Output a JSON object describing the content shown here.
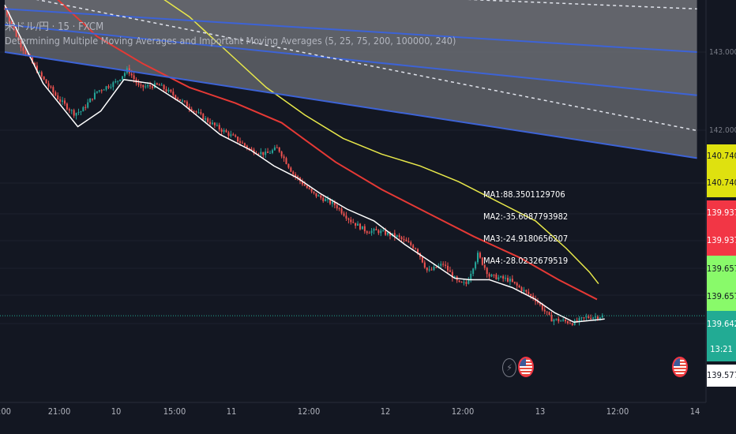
{
  "legend": {
    "symbol_line": "米ドル/円 · 15 · FXCM",
    "indicator_line": "Determining Multiple Moving Averages and Important Moving Averages (5, 25, 75, 200, 100000, 240)"
  },
  "ma_readouts": [
    "MA1:88.3501129706",
    "MA2:-35.6087793982",
    "MA3:-24.9180656207",
    "MA4:-28.0232679519"
  ],
  "price_boxes": [
    {
      "label": "140.740",
      "bg": "#dfe10f",
      "fg": "#131722"
    },
    {
      "label": "140.740",
      "bg": "#dfe10f",
      "fg": "#131722"
    },
    {
      "label": "139.937",
      "bg": "#f23645",
      "fg": "#ffffff"
    },
    {
      "label": "139.937",
      "bg": "#f23645",
      "fg": "#ffffff"
    },
    {
      "label": "139.657",
      "bg": "#89fa6a",
      "fg": "#131722"
    },
    {
      "label": "139.657",
      "bg": "#89fa6a",
      "fg": "#131722"
    },
    {
      "label": "139.642",
      "bg": "#22ab94",
      "fg": "#ffffff"
    },
    {
      "label": "13:21",
      "bg": "#22ab94",
      "fg": "#ffffff"
    },
    {
      "label": "139.577",
      "bg": "#ffffff",
      "fg": "#131722"
    }
  ],
  "axis_price_labels": [
    "143.000",
    "142.000"
  ],
  "time_labels": [
    ":00",
    "21:00",
    "10",
    "15:00",
    "11",
    "12:00",
    "12",
    "12:00",
    "13",
    "12:00",
    "14"
  ],
  "event_icons": [
    "lightning-icon",
    "us-flag-icon",
    "us-flag-icon"
  ],
  "colors": {
    "background": "#131722",
    "candle_up": "#26a69a",
    "candle_down": "#ef5350",
    "ma_fast": "#ffffff",
    "ma_mid": "#e53935",
    "ma_slow": "#e8e84a",
    "channel_line": "#3d63d6",
    "channel_fill": "#6b6d73",
    "dashed_line": "#e0e3eb"
  },
  "chart_data": {
    "type": "candlestick",
    "symbol": "USDJPY",
    "timeframe": "15",
    "source": "FXCM",
    "x": [
      "20:00",
      "21:00",
      "10",
      "15:00",
      "11",
      "12:00",
      "12",
      "12:00",
      "13",
      "12:00",
      "14"
    ],
    "ylim": [
      139.25,
      143.75
    ],
    "price_ticks": [
      143.0,
      142.0
    ],
    "close_path": [
      [
        0,
        143.55
      ],
      [
        0.2,
        143.1
      ],
      [
        0.45,
        142.72
      ],
      [
        0.7,
        142.4
      ],
      [
        0.9,
        142.22
      ],
      [
        1.0,
        142.25
      ],
      [
        1.2,
        142.5
      ],
      [
        1.45,
        142.62
      ],
      [
        1.6,
        142.78
      ],
      [
        1.75,
        142.55
      ],
      [
        2.0,
        142.58
      ],
      [
        2.2,
        142.45
      ],
      [
        2.6,
        142.15
      ],
      [
        2.75,
        142.05
      ],
      [
        3.0,
        141.9
      ],
      [
        3.2,
        141.75
      ],
      [
        3.4,
        141.7
      ],
      [
        3.55,
        141.78
      ],
      [
        3.75,
        141.45
      ],
      [
        4.0,
        141.2
      ],
      [
        4.1,
        141.15
      ],
      [
        4.3,
        141.05
      ],
      [
        4.5,
        140.85
      ],
      [
        4.7,
        140.72
      ],
      [
        4.85,
        140.72
      ],
      [
        5.1,
        140.65
      ],
      [
        5.35,
        140.5
      ],
      [
        5.5,
        140.2
      ],
      [
        5.7,
        140.3
      ],
      [
        5.9,
        140.05
      ],
      [
        6.0,
        140.05
      ],
      [
        6.15,
        140.42
      ],
      [
        6.3,
        140.15
      ],
      [
        6.55,
        140.1
      ],
      [
        6.9,
        139.85
      ],
      [
        7.1,
        139.6
      ],
      [
        7.4,
        139.55
      ],
      [
        7.55,
        139.62
      ],
      [
        7.8,
        139.64
      ]
    ],
    "series": [
      {
        "name": "MA1",
        "values": [
          [
            0,
            143.6
          ],
          [
            0.5,
            142.6
          ],
          [
            0.95,
            142.05
          ],
          [
            1.25,
            142.25
          ],
          [
            1.55,
            142.65
          ],
          [
            1.9,
            142.6
          ],
          [
            2.3,
            142.35
          ],
          [
            2.8,
            141.95
          ],
          [
            3.2,
            141.75
          ],
          [
            3.5,
            141.55
          ],
          [
            3.8,
            141.4
          ],
          [
            4.1,
            141.2
          ],
          [
            4.45,
            141.0
          ],
          [
            4.8,
            140.85
          ],
          [
            5.2,
            140.55
          ],
          [
            5.55,
            140.32
          ],
          [
            5.85,
            140.12
          ],
          [
            6.05,
            140.1
          ],
          [
            6.3,
            140.1
          ],
          [
            6.6,
            140.0
          ],
          [
            6.9,
            139.85
          ],
          [
            7.15,
            139.68
          ],
          [
            7.4,
            139.56
          ],
          [
            7.6,
            139.58
          ],
          [
            7.8,
            139.6
          ]
        ]
      },
      {
        "name": "MA2",
        "values": [
          [
            0.6,
            143.75
          ],
          [
            1.2,
            143.2
          ],
          [
            1.8,
            142.85
          ],
          [
            2.4,
            142.55
          ],
          [
            3.0,
            142.35
          ],
          [
            3.6,
            142.1
          ],
          [
            4.3,
            141.6
          ],
          [
            4.9,
            141.25
          ],
          [
            5.5,
            140.95
          ],
          [
            6.1,
            140.65
          ],
          [
            6.7,
            140.38
          ],
          [
            7.2,
            140.1
          ],
          [
            7.7,
            139.85
          ]
        ]
      },
      {
        "name": "MA3",
        "values": [
          [
            1.95,
            143.75
          ],
          [
            2.4,
            143.45
          ],
          [
            2.9,
            143.0
          ],
          [
            3.4,
            142.55
          ],
          [
            3.9,
            142.2
          ],
          [
            4.4,
            141.9
          ],
          [
            4.9,
            141.7
          ],
          [
            5.4,
            141.55
          ],
          [
            5.9,
            141.35
          ],
          [
            6.4,
            141.1
          ],
          [
            6.9,
            140.85
          ],
          [
            7.3,
            140.5
          ],
          [
            7.6,
            140.2
          ],
          [
            7.72,
            140.05
          ]
        ]
      }
    ],
    "channel": {
      "lines": [
        [
          [
            0,
            143.55
          ],
          [
            9,
            143.0
          ]
        ],
        [
          [
            0,
            143.35
          ],
          [
            9,
            142.45
          ]
        ],
        [
          [
            0,
            143.0
          ],
          [
            9,
            141.65
          ]
        ]
      ],
      "dashed": [
        [
          [
            0,
            143.75
          ],
          [
            9,
            142.0
          ]
        ],
        [
          [
            4.05,
            143.75
          ],
          [
            9,
            143.55
          ]
        ]
      ]
    },
    "horizontal_lines": [
      139.642
    ]
  }
}
